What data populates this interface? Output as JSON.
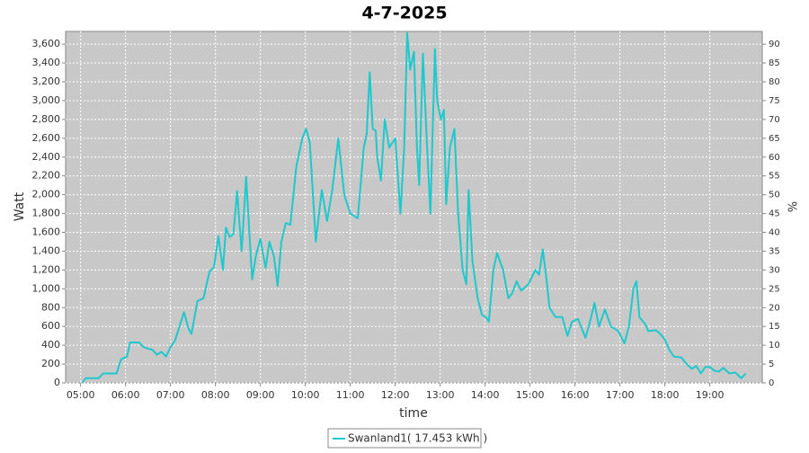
{
  "chart_data": {
    "type": "line",
    "title": "4-7-2025",
    "xlabel": "time",
    "ylabel": "Watt",
    "y2label": "%",
    "x": [
      302,
      307,
      324,
      330,
      348,
      354,
      362,
      366,
      378,
      384,
      396,
      402,
      408,
      414,
      420,
      426,
      438,
      444,
      448,
      456,
      464,
      472,
      478,
      484,
      490,
      494,
      499,
      504,
      509,
      512,
      515,
      521,
      526,
      529,
      534,
      540,
      547,
      552,
      558,
      563,
      568,
      574,
      580,
      588,
      596,
      601,
      606,
      614,
      622,
      629,
      636,
      644,
      652,
      660,
      670,
      678,
      682,
      686,
      690,
      694,
      696,
      701,
      706,
      712,
      720,
      727,
      732,
      736,
      740,
      745,
      749,
      752,
      757,
      762,
      767,
      773,
      776,
      781,
      785,
      788,
      793,
      799,
      804,
      810,
      815,
      818,
      823,
      830,
      836,
      841,
      845,
      851,
      856,
      864,
      871,
      876,
      882,
      888,
      898,
      907,
      912,
      917,
      922,
      926,
      934,
      943,
      950,
      956,
      964,
      974,
      980,
      986,
      992,
      1000,
      1008,
      1018,
      1026,
      1032,
      1038,
      1042,
      1046,
      1054,
      1058,
      1068,
      1074,
      1080,
      1086,
      1092,
      1102,
      1109,
      1116,
      1122,
      1128,
      1134,
      1140,
      1146,
      1152,
      1158,
      1166,
      1174,
      1182,
      1188
    ],
    "series": [
      {
        "name": "Swanland1( 17.453 kWh )",
        "color": "#1ec8cc",
        "values": [
          0,
          50,
          50,
          100,
          100,
          250,
          280,
          430,
          430,
          380,
          350,
          300,
          330,
          280,
          380,
          450,
          750,
          580,
          520,
          870,
          900,
          1180,
          1230,
          1560,
          1200,
          1650,
          1550,
          1580,
          2040,
          1700,
          1400,
          2190,
          1500,
          1100,
          1350,
          1530,
          1220,
          1500,
          1350,
          1030,
          1500,
          1700,
          1680,
          2300,
          2600,
          2700,
          2550,
          1500,
          2050,
          1720,
          2050,
          2600,
          2000,
          1800,
          1750,
          2500,
          2650,
          3300,
          2700,
          2680,
          2400,
          2150,
          2800,
          2500,
          2600,
          1800,
          2500,
          3720,
          3330,
          3520,
          2500,
          2100,
          3500,
          2600,
          1800,
          3550,
          3000,
          2800,
          2900,
          1900,
          2500,
          2700,
          1800,
          1200,
          1050,
          2050,
          1300,
          900,
          720,
          700,
          650,
          1200,
          1380,
          1200,
          900,
          950,
          1080,
          980,
          1050,
          1200,
          1150,
          1420,
          1100,
          800,
          700,
          700,
          500,
          650,
          680,
          480,
          650,
          850,
          600,
          780,
          600,
          550,
          420,
          600,
          1000,
          1080,
          700,
          620,
          550,
          560,
          520,
          460,
          350,
          280,
          270,
          200,
          150,
          180,
          100,
          170,
          170,
          130,
          120,
          160,
          100,
          110,
          50,
          100
        ]
      }
    ],
    "xlim": [
      280,
      1210
    ],
    "xticks": [
      {
        "value": 300,
        "label": "05:00"
      },
      {
        "value": 360,
        "label": "06:00"
      },
      {
        "value": 420,
        "label": "07:00"
      },
      {
        "value": 480,
        "label": "08:00"
      },
      {
        "value": 540,
        "label": "09:00"
      },
      {
        "value": 600,
        "label": "10:00"
      },
      {
        "value": 660,
        "label": "11:00"
      },
      {
        "value": 720,
        "label": "12:00"
      },
      {
        "value": 780,
        "label": "13:00"
      },
      {
        "value": 840,
        "label": "14:00"
      },
      {
        "value": 900,
        "label": "15:00"
      },
      {
        "value": 960,
        "label": "16:00"
      },
      {
        "value": 1020,
        "label": "17:00"
      },
      {
        "value": 1080,
        "label": "18:00"
      },
      {
        "value": 1140,
        "label": "19:00"
      }
    ],
    "ylim": [
      0,
      3735
    ],
    "yticks": [
      0,
      200,
      400,
      600,
      800,
      {
        "value": 1000,
        "label": "1,000"
      },
      {
        "value": 1200,
        "label": "1,200"
      },
      {
        "value": 1400,
        "label": "1,400"
      },
      {
        "value": 1600,
        "label": "1,600"
      },
      {
        "value": 1800,
        "label": "1,800"
      },
      {
        "value": 2000,
        "label": "2,000"
      },
      {
        "value": 2200,
        "label": "2,200"
      },
      {
        "value": 2400,
        "label": "2,400"
      },
      {
        "value": 2600,
        "label": "2,600"
      },
      {
        "value": 2800,
        "label": "2,800"
      },
      {
        "value": 3000,
        "label": "3,000"
      },
      {
        "value": 3200,
        "label": "3,200"
      },
      {
        "value": 3400,
        "label": "3,400"
      },
      {
        "value": 3600,
        "label": "3,600"
      }
    ],
    "y2lim": [
      0,
      93.375
    ],
    "y2ticks": [
      0,
      5,
      10,
      15,
      20,
      25,
      30,
      35,
      40,
      45,
      50,
      55,
      60,
      65,
      70,
      75,
      80,
      85,
      90
    ],
    "grid": true,
    "legend": "bottom"
  }
}
